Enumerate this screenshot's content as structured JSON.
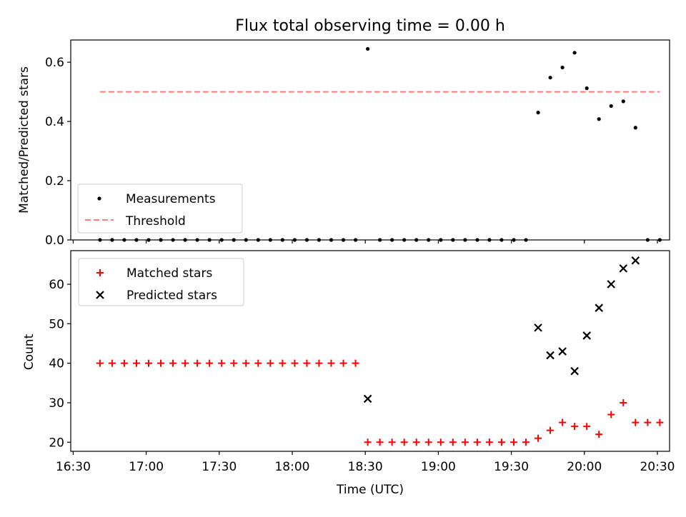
{
  "chart_data": [
    {
      "type": "scatter",
      "title": "Flux total observing time = 0.00 h",
      "ylabel": "Matched/Predicted stars",
      "xlabel": "",
      "ylim": [
        0,
        0.675
      ],
      "yticks": [
        {
          "value": 0.0,
          "label": "0.0"
        },
        {
          "value": 0.2,
          "label": "0.2"
        },
        {
          "value": 0.4,
          "label": "0.4"
        },
        {
          "value": 0.6,
          "label": "0.6"
        }
      ],
      "xlim": [
        "16:29",
        "20:35"
      ],
      "legend_position": "lower-left",
      "series": [
        {
          "name": "Measurements",
          "kind": "dots",
          "color": "#000000",
          "points": [
            [
              "16:41",
              0
            ],
            [
              "16:46",
              0
            ],
            [
              "16:51",
              0
            ],
            [
              "16:56",
              0
            ],
            [
              "17:01",
              0
            ],
            [
              "17:06",
              0
            ],
            [
              "17:11",
              0
            ],
            [
              "17:16",
              0
            ],
            [
              "17:21",
              0
            ],
            [
              "17:26",
              0
            ],
            [
              "17:31",
              0
            ],
            [
              "17:36",
              0
            ],
            [
              "17:41",
              0
            ],
            [
              "17:46",
              0
            ],
            [
              "17:51",
              0
            ],
            [
              "17:56",
              0
            ],
            [
              "18:01",
              0
            ],
            [
              "18:06",
              0
            ],
            [
              "18:11",
              0
            ],
            [
              "18:16",
              0
            ],
            [
              "18:21",
              0
            ],
            [
              "18:26",
              0
            ],
            [
              "18:31",
              0.645
            ],
            [
              "18:36",
              0
            ],
            [
              "18:41",
              0
            ],
            [
              "18:46",
              0
            ],
            [
              "18:51",
              0
            ],
            [
              "18:56",
              0
            ],
            [
              "19:01",
              0
            ],
            [
              "19:06",
              0
            ],
            [
              "19:11",
              0
            ],
            [
              "19:16",
              0
            ],
            [
              "19:21",
              0
            ],
            [
              "19:26",
              0
            ],
            [
              "19:31",
              0
            ],
            [
              "19:36",
              0
            ],
            [
              "19:41",
              0.43
            ],
            [
              "19:46",
              0.548
            ],
            [
              "19:51",
              0.582
            ],
            [
              "19:56",
              0.632
            ],
            [
              "20:01",
              0.512
            ],
            [
              "20:06",
              0.408
            ],
            [
              "20:11",
              0.452
            ],
            [
              "20:16",
              0.468
            ],
            [
              "20:21",
              0.379
            ],
            [
              "20:26",
              0
            ],
            [
              "20:31",
              0
            ]
          ]
        },
        {
          "name": "Threshold",
          "kind": "dashed-line",
          "color": "#ff7f7f",
          "points": [
            [
              "16:41",
              0.5
            ],
            [
              "20:31",
              0.5
            ]
          ]
        }
      ]
    },
    {
      "type": "scatter",
      "title": "",
      "ylabel": "Count",
      "xlabel": "Time (UTC)",
      "ylim": [
        17.7,
        68.5
      ],
      "yticks": [
        {
          "value": 20,
          "label": "20"
        },
        {
          "value": 30,
          "label": "30"
        },
        {
          "value": 40,
          "label": "40"
        },
        {
          "value": 50,
          "label": "50"
        },
        {
          "value": 60,
          "label": "60"
        }
      ],
      "xlim": [
        "16:29",
        "20:35"
      ],
      "xticks": [
        {
          "value": "16:30",
          "label": "16:30"
        },
        {
          "value": "17:00",
          "label": "17:00"
        },
        {
          "value": "17:30",
          "label": "17:30"
        },
        {
          "value": "18:00",
          "label": "18:00"
        },
        {
          "value": "18:30",
          "label": "18:30"
        },
        {
          "value": "19:00",
          "label": "19:00"
        },
        {
          "value": "19:30",
          "label": "19:30"
        },
        {
          "value": "20:00",
          "label": "20:00"
        },
        {
          "value": "20:30",
          "label": "20:30"
        }
      ],
      "legend_position": "top-left",
      "series": [
        {
          "name": "Matched stars",
          "kind": "plus",
          "color": "#ff0000",
          "points": [
            [
              "16:41",
              40
            ],
            [
              "16:46",
              40
            ],
            [
              "16:51",
              40
            ],
            [
              "16:56",
              40
            ],
            [
              "17:01",
              40
            ],
            [
              "17:06",
              40
            ],
            [
              "17:11",
              40
            ],
            [
              "17:16",
              40
            ],
            [
              "17:21",
              40
            ],
            [
              "17:26",
              40
            ],
            [
              "17:31",
              40
            ],
            [
              "17:36",
              40
            ],
            [
              "17:41",
              40
            ],
            [
              "17:46",
              40
            ],
            [
              "17:51",
              40
            ],
            [
              "17:56",
              40
            ],
            [
              "18:01",
              40
            ],
            [
              "18:06",
              40
            ],
            [
              "18:11",
              40
            ],
            [
              "18:16",
              40
            ],
            [
              "18:21",
              40
            ],
            [
              "18:26",
              40
            ],
            [
              "18:31",
              20
            ],
            [
              "18:36",
              20
            ],
            [
              "18:41",
              20
            ],
            [
              "18:46",
              20
            ],
            [
              "18:51",
              20
            ],
            [
              "18:56",
              20
            ],
            [
              "19:01",
              20
            ],
            [
              "19:06",
              20
            ],
            [
              "19:11",
              20
            ],
            [
              "19:16",
              20
            ],
            [
              "19:21",
              20
            ],
            [
              "19:26",
              20
            ],
            [
              "19:31",
              20
            ],
            [
              "19:36",
              20
            ],
            [
              "19:41",
              21
            ],
            [
              "19:46",
              23
            ],
            [
              "19:51",
              25
            ],
            [
              "19:56",
              24
            ],
            [
              "20:01",
              24
            ],
            [
              "20:06",
              22
            ],
            [
              "20:11",
              27
            ],
            [
              "20:16",
              30
            ],
            [
              "20:21",
              25
            ],
            [
              "20:26",
              25
            ],
            [
              "20:31",
              25
            ]
          ]
        },
        {
          "name": "Predicted stars",
          "kind": "cross",
          "color": "#000000",
          "points": [
            [
              "18:31",
              31
            ],
            [
              "19:41",
              49
            ],
            [
              "19:46",
              42
            ],
            [
              "19:51",
              43
            ],
            [
              "19:56",
              38
            ],
            [
              "20:01",
              47
            ],
            [
              "20:06",
              54
            ],
            [
              "20:11",
              60
            ],
            [
              "20:16",
              64
            ],
            [
              "20:21",
              66
            ]
          ]
        }
      ]
    }
  ]
}
